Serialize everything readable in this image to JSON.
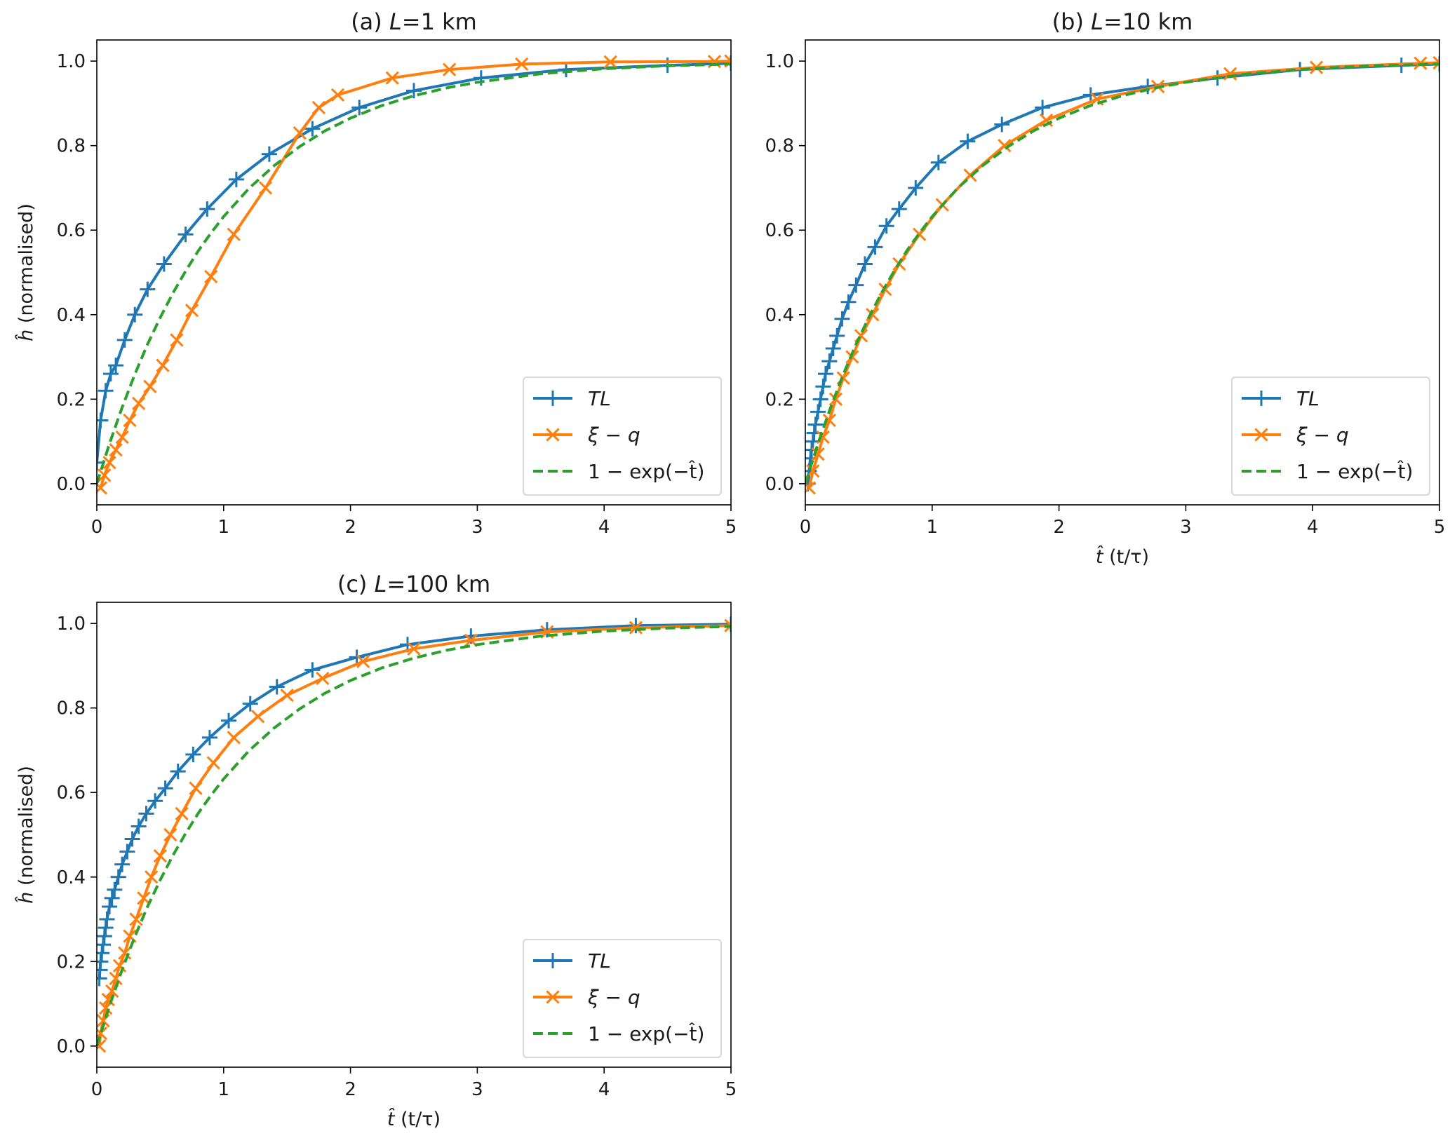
{
  "figure": {
    "legend_labels": {
      "TL": "TL",
      "xi_q": "ξ − q",
      "exp": "1 − exp(−t̂)"
    },
    "colors": {
      "TL": "#1f77b4",
      "xi_q": "#ff7f0e",
      "exp": "#2ca02c"
    }
  },
  "chart_data": [
    {
      "type": "line",
      "title_prefix": "(a) ",
      "title_var": "L",
      "title_rest": "=1 km",
      "ylabel_hat": "ĥ",
      "ylabel_rest": " (normalised)",
      "xlabel_hat": "",
      "xlabel_rest": "",
      "xlim": [
        0,
        5
      ],
      "ylim": [
        -0.05,
        1.05
      ],
      "xticks": [
        "0",
        "1",
        "2",
        "3",
        "4",
        "5"
      ],
      "yticks": [
        "0.0",
        "0.2",
        "0.4",
        "0.6",
        "0.8",
        "1.0"
      ],
      "legend_position": "lower-right",
      "grid": false,
      "series": [
        {
          "name": "TL",
          "style": "solid",
          "marker": "plus",
          "x": [
            0.0,
            0.03,
            0.07,
            0.11,
            0.15,
            0.22,
            0.3,
            0.4,
            0.53,
            0.7,
            0.87,
            1.1,
            1.36,
            1.7,
            2.07,
            2.5,
            3.03,
            3.7,
            4.5,
            5.0
          ],
          "y": [
            0.05,
            0.15,
            0.22,
            0.26,
            0.28,
            0.34,
            0.4,
            0.46,
            0.52,
            0.59,
            0.65,
            0.72,
            0.78,
            0.84,
            0.89,
            0.93,
            0.96,
            0.98,
            0.99,
            0.995
          ]
        },
        {
          "name": "ξ − q",
          "style": "solid",
          "marker": "x",
          "x": [
            0.03,
            0.06,
            0.1,
            0.15,
            0.2,
            0.26,
            0.33,
            0.42,
            0.52,
            0.63,
            0.75,
            0.9,
            1.08,
            1.33,
            1.6,
            1.75,
            1.9,
            2.33,
            2.78,
            3.35,
            4.05,
            4.87,
            5.0
          ],
          "y": [
            -0.01,
            0.02,
            0.05,
            0.08,
            0.11,
            0.15,
            0.19,
            0.23,
            0.28,
            0.34,
            0.41,
            0.49,
            0.59,
            0.7,
            0.83,
            0.89,
            0.92,
            0.96,
            0.98,
            0.993,
            0.998,
            0.999,
            1.0
          ]
        },
        {
          "name": "1 − exp(−t̂)",
          "style": "dashed",
          "marker": "none",
          "x": [
            0.0,
            0.1,
            0.2,
            0.3,
            0.4,
            0.5,
            0.6,
            0.7,
            0.8,
            0.9,
            1.0,
            1.2,
            1.4,
            1.6,
            1.8,
            2.0,
            2.25,
            2.5,
            2.75,
            3.0,
            3.5,
            4.0,
            4.5,
            5.0
          ],
          "y": [
            0.0,
            0.095,
            0.181,
            0.259,
            0.33,
            0.393,
            0.451,
            0.503,
            0.551,
            0.593,
            0.632,
            0.699,
            0.753,
            0.798,
            0.835,
            0.865,
            0.895,
            0.918,
            0.936,
            0.95,
            0.97,
            0.982,
            0.989,
            0.993
          ]
        }
      ]
    },
    {
      "type": "line",
      "title_prefix": "(b) ",
      "title_var": "L",
      "title_rest": "=10 km",
      "ylabel_hat": "",
      "ylabel_rest": "",
      "xlabel_hat": "t̂",
      "xlabel_rest": " (t/τ)",
      "xlim": [
        0,
        5
      ],
      "ylim": [
        -0.05,
        1.05
      ],
      "xticks": [
        "0",
        "1",
        "2",
        "3",
        "4",
        "5"
      ],
      "yticks": [
        "0.0",
        "0.2",
        "0.4",
        "0.6",
        "0.8",
        "1.0"
      ],
      "legend_position": "lower-right",
      "grid": false,
      "series": [
        {
          "name": "TL",
          "style": "solid",
          "marker": "plus",
          "x": [
            0.02,
            0.03,
            0.04,
            0.05,
            0.06,
            0.07,
            0.08,
            0.1,
            0.12,
            0.14,
            0.16,
            0.19,
            0.22,
            0.25,
            0.29,
            0.34,
            0.4,
            0.47,
            0.55,
            0.64,
            0.74,
            0.87,
            1.05,
            1.28,
            1.55,
            1.87,
            2.25,
            2.7,
            3.25,
            3.9,
            4.7,
            5.0
          ],
          "y": [
            0.0,
            0.03,
            0.06,
            0.08,
            0.1,
            0.12,
            0.14,
            0.17,
            0.2,
            0.23,
            0.26,
            0.29,
            0.32,
            0.35,
            0.39,
            0.43,
            0.47,
            0.52,
            0.56,
            0.61,
            0.65,
            0.7,
            0.76,
            0.81,
            0.85,
            0.89,
            0.92,
            0.94,
            0.96,
            0.98,
            0.99,
            0.993
          ]
        },
        {
          "name": "ξ − q",
          "style": "solid",
          "marker": "x",
          "x": [
            0.03,
            0.06,
            0.1,
            0.14,
            0.19,
            0.24,
            0.3,
            0.37,
            0.44,
            0.53,
            0.63,
            0.74,
            0.9,
            1.08,
            1.3,
            1.57,
            1.9,
            2.3,
            2.78,
            3.35,
            4.03,
            4.85,
            5.0
          ],
          "y": [
            -0.01,
            0.03,
            0.07,
            0.11,
            0.15,
            0.2,
            0.25,
            0.3,
            0.35,
            0.4,
            0.46,
            0.52,
            0.59,
            0.66,
            0.73,
            0.8,
            0.86,
            0.91,
            0.94,
            0.97,
            0.985,
            0.995,
            0.996
          ]
        },
        {
          "name": "1 − exp(−t̂)",
          "style": "dashed",
          "marker": "none",
          "x": [
            0.0,
            0.1,
            0.2,
            0.3,
            0.4,
            0.5,
            0.6,
            0.7,
            0.8,
            0.9,
            1.0,
            1.2,
            1.4,
            1.6,
            1.8,
            2.0,
            2.25,
            2.5,
            2.75,
            3.0,
            3.5,
            4.0,
            4.5,
            5.0
          ],
          "y": [
            0.0,
            0.095,
            0.181,
            0.259,
            0.33,
            0.393,
            0.451,
            0.503,
            0.551,
            0.593,
            0.632,
            0.699,
            0.753,
            0.798,
            0.835,
            0.865,
            0.895,
            0.918,
            0.936,
            0.95,
            0.97,
            0.982,
            0.989,
            0.993
          ]
        }
      ]
    },
    {
      "type": "line",
      "title_prefix": "(c) ",
      "title_var": "L",
      "title_rest": "=100 km",
      "ylabel_hat": "ĥ",
      "ylabel_rest": " (normalised)",
      "xlabel_hat": "t̂",
      "xlabel_rest": " (t/τ)",
      "xlim": [
        0,
        5
      ],
      "ylim": [
        -0.05,
        1.05
      ],
      "xticks": [
        "0",
        "1",
        "2",
        "3",
        "4",
        "5"
      ],
      "yticks": [
        "0.0",
        "0.2",
        "0.4",
        "0.6",
        "0.8",
        "1.0"
      ],
      "legend_position": "lower-right",
      "grid": false,
      "series": [
        {
          "name": "TL",
          "style": "solid",
          "marker": "plus",
          "x": [
            0.02,
            0.025,
            0.03,
            0.04,
            0.05,
            0.06,
            0.07,
            0.08,
            0.1,
            0.12,
            0.14,
            0.17,
            0.2,
            0.24,
            0.28,
            0.33,
            0.39,
            0.46,
            0.54,
            0.64,
            0.76,
            0.89,
            1.04,
            1.21,
            1.42,
            1.7,
            2.05,
            2.45,
            2.95,
            3.55,
            4.25,
            5.0
          ],
          "y": [
            0.16,
            0.18,
            0.2,
            0.22,
            0.24,
            0.26,
            0.28,
            0.3,
            0.33,
            0.35,
            0.37,
            0.4,
            0.43,
            0.46,
            0.49,
            0.52,
            0.55,
            0.58,
            0.61,
            0.65,
            0.69,
            0.73,
            0.77,
            0.81,
            0.85,
            0.89,
            0.92,
            0.95,
            0.97,
            0.985,
            0.995,
            0.998
          ]
        },
        {
          "name": "ξ − q",
          "style": "solid",
          "marker": "x",
          "x": [
            0.02,
            0.03,
            0.05,
            0.07,
            0.09,
            0.12,
            0.15,
            0.18,
            0.22,
            0.26,
            0.31,
            0.37,
            0.43,
            0.5,
            0.58,
            0.67,
            0.78,
            0.92,
            1.08,
            1.27,
            1.5,
            1.78,
            2.1,
            2.5,
            2.95,
            3.55,
            4.25,
            5.0
          ],
          "y": [
            0.0,
            0.03,
            0.06,
            0.09,
            0.11,
            0.13,
            0.16,
            0.19,
            0.22,
            0.26,
            0.3,
            0.35,
            0.4,
            0.45,
            0.5,
            0.55,
            0.61,
            0.67,
            0.73,
            0.78,
            0.83,
            0.87,
            0.91,
            0.94,
            0.96,
            0.98,
            0.99,
            0.995
          ]
        },
        {
          "name": "1 − exp(−t̂)",
          "style": "dashed",
          "marker": "none",
          "x": [
            0.0,
            0.1,
            0.2,
            0.3,
            0.4,
            0.5,
            0.6,
            0.7,
            0.8,
            0.9,
            1.0,
            1.2,
            1.4,
            1.6,
            1.8,
            2.0,
            2.25,
            2.5,
            2.75,
            3.0,
            3.5,
            4.0,
            4.5,
            5.0
          ],
          "y": [
            0.0,
            0.095,
            0.181,
            0.259,
            0.33,
            0.393,
            0.451,
            0.503,
            0.551,
            0.593,
            0.632,
            0.699,
            0.753,
            0.798,
            0.835,
            0.865,
            0.895,
            0.918,
            0.936,
            0.95,
            0.97,
            0.982,
            0.989,
            0.993
          ]
        }
      ]
    }
  ]
}
